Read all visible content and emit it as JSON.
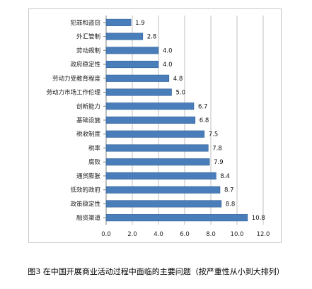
{
  "caption": "图3 在中国开展商业活动过程中面临的主要问题（按严重性从小到大排列）",
  "chart_data": {
    "type": "bar",
    "orientation": "horizontal",
    "categories": [
      "犯罪和盗窃",
      "外汇管制",
      "劳动规制",
      "政府稳定性",
      "劳动力受教育程度",
      "劳动力市场工作伦理",
      "创新能力",
      "基础设施",
      "税收制度",
      "税率",
      "腐败",
      "通货膨胀",
      "低效的政府",
      "政策稳定性",
      "融资渠道"
    ],
    "values": [
      1.9,
      2.8,
      4.0,
      4.0,
      4.8,
      5.0,
      6.7,
      6.8,
      7.5,
      7.8,
      7.9,
      8.4,
      8.7,
      8.8,
      10.8
    ],
    "value_labels": [
      "1.9",
      "2.8",
      "4.0",
      "4.0",
      "4.8",
      "5.0",
      "6.7",
      "6.8",
      "7.5",
      "7.8",
      "7.9",
      "8.4",
      "8.7",
      "8.8",
      "10.8"
    ],
    "xlim": [
      0,
      12
    ],
    "x_ticks": [
      "0.0",
      "2.0",
      "4.0",
      "6.0",
      "8.0",
      "10.0",
      "12.0"
    ],
    "grid": "vertical",
    "bar_color": "#4a7ebb",
    "bar_edge_color": "#2f5f96",
    "grid_color": "#bfbfbf"
  }
}
